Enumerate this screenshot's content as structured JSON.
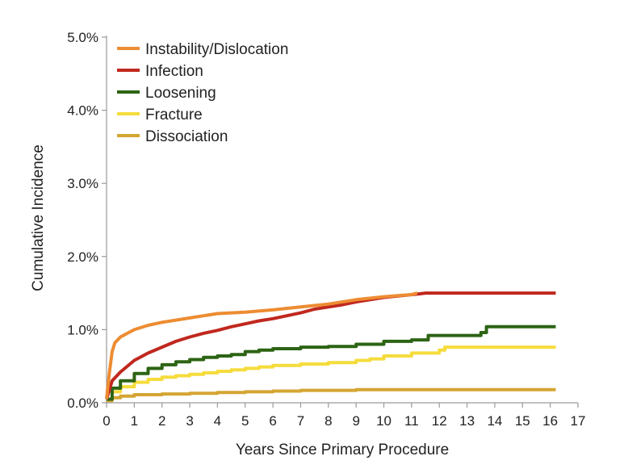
{
  "chart_data": {
    "type": "line",
    "title": "",
    "xlabel": "Years Since Primary Procedure",
    "ylabel": "Cumulative Incidence",
    "xlim": [
      0,
      17
    ],
    "ylim": [
      0,
      5
    ],
    "x_ticks": [
      "0",
      "1",
      "2",
      "3",
      "4",
      "5",
      "6",
      "7",
      "8",
      "9",
      "10",
      "11",
      "12",
      "13",
      "14",
      "15",
      "16",
      "17"
    ],
    "y_ticks": [
      "0.0%",
      "1.0%",
      "2.0%",
      "3.0%",
      "4.0%",
      "5.0%"
    ],
    "grid": false,
    "legend_position": "top-left",
    "series": [
      {
        "name": "Instability/Dislocation",
        "color": "#ed8c32",
        "step": false,
        "points": [
          [
            0,
            0.05
          ],
          [
            0.1,
            0.4
          ],
          [
            0.2,
            0.7
          ],
          [
            0.3,
            0.82
          ],
          [
            0.5,
            0.9
          ],
          [
            0.8,
            0.96
          ],
          [
            1,
            1.0
          ],
          [
            1.5,
            1.06
          ],
          [
            2,
            1.1
          ],
          [
            2.5,
            1.13
          ],
          [
            3,
            1.16
          ],
          [
            3.5,
            1.19
          ],
          [
            4,
            1.22
          ],
          [
            5,
            1.24
          ],
          [
            6,
            1.27
          ],
          [
            7,
            1.31
          ],
          [
            8,
            1.35
          ],
          [
            9,
            1.41
          ],
          [
            10,
            1.45
          ],
          [
            11,
            1.48
          ],
          [
            11.2,
            1.5
          ]
        ]
      },
      {
        "name": "Infection",
        "color": "#c0281e",
        "step": false,
        "points": [
          [
            0,
            0.05
          ],
          [
            0.2,
            0.3
          ],
          [
            0.5,
            0.42
          ],
          [
            1,
            0.58
          ],
          [
            1.5,
            0.68
          ],
          [
            2,
            0.76
          ],
          [
            2.5,
            0.84
          ],
          [
            3,
            0.9
          ],
          [
            3.5,
            0.95
          ],
          [
            4,
            0.99
          ],
          [
            4.5,
            1.04
          ],
          [
            5,
            1.08
          ],
          [
            5.5,
            1.12
          ],
          [
            6,
            1.15
          ],
          [
            6.5,
            1.19
          ],
          [
            7,
            1.23
          ],
          [
            7.5,
            1.28
          ],
          [
            8,
            1.31
          ],
          [
            8.5,
            1.34
          ],
          [
            9,
            1.38
          ],
          [
            9.5,
            1.41
          ],
          [
            10,
            1.44
          ],
          [
            10.5,
            1.46
          ],
          [
            11.3,
            1.49
          ],
          [
            11.5,
            1.5
          ],
          [
            16.2,
            1.5
          ]
        ]
      },
      {
        "name": "Loosening",
        "color": "#2d6414",
        "step": true,
        "points": [
          [
            0,
            0.05
          ],
          [
            0.2,
            0.2
          ],
          [
            0.5,
            0.3
          ],
          [
            1,
            0.4
          ],
          [
            1.5,
            0.47
          ],
          [
            2,
            0.52
          ],
          [
            2.5,
            0.56
          ],
          [
            3,
            0.59
          ],
          [
            3.5,
            0.62
          ],
          [
            4,
            0.64
          ],
          [
            4.5,
            0.66
          ],
          [
            5,
            0.7
          ],
          [
            5.5,
            0.72
          ],
          [
            6,
            0.74
          ],
          [
            7,
            0.76
          ],
          [
            8,
            0.77
          ],
          [
            9,
            0.8
          ],
          [
            10,
            0.84
          ],
          [
            11,
            0.86
          ],
          [
            11.6,
            0.92
          ],
          [
            13.5,
            0.96
          ],
          [
            13.7,
            1.04
          ],
          [
            16.2,
            1.04
          ]
        ]
      },
      {
        "name": "Fracture",
        "color": "#f5dc3c",
        "step": true,
        "points": [
          [
            0,
            0.05
          ],
          [
            0.2,
            0.15
          ],
          [
            0.5,
            0.22
          ],
          [
            1,
            0.28
          ],
          [
            1.5,
            0.32
          ],
          [
            2,
            0.35
          ],
          [
            2.5,
            0.37
          ],
          [
            3,
            0.39
          ],
          [
            3.5,
            0.41
          ],
          [
            4,
            0.43
          ],
          [
            4.5,
            0.45
          ],
          [
            5,
            0.47
          ],
          [
            5.5,
            0.49
          ],
          [
            6,
            0.51
          ],
          [
            7,
            0.53
          ],
          [
            8,
            0.55
          ],
          [
            9,
            0.58
          ],
          [
            9.5,
            0.6
          ],
          [
            10,
            0.64
          ],
          [
            11,
            0.68
          ],
          [
            12,
            0.72
          ],
          [
            12.2,
            0.76
          ],
          [
            16.2,
            0.76
          ]
        ]
      },
      {
        "name": "Dissociation",
        "color": "#d4a532",
        "step": true,
        "points": [
          [
            0,
            0.03
          ],
          [
            0.2,
            0.07
          ],
          [
            0.5,
            0.09
          ],
          [
            1,
            0.11
          ],
          [
            2,
            0.12
          ],
          [
            3,
            0.13
          ],
          [
            4,
            0.14
          ],
          [
            5,
            0.15
          ],
          [
            6,
            0.16
          ],
          [
            7,
            0.17
          ],
          [
            8,
            0.17
          ],
          [
            9,
            0.18
          ],
          [
            10,
            0.18
          ],
          [
            16.2,
            0.18
          ]
        ]
      }
    ]
  }
}
